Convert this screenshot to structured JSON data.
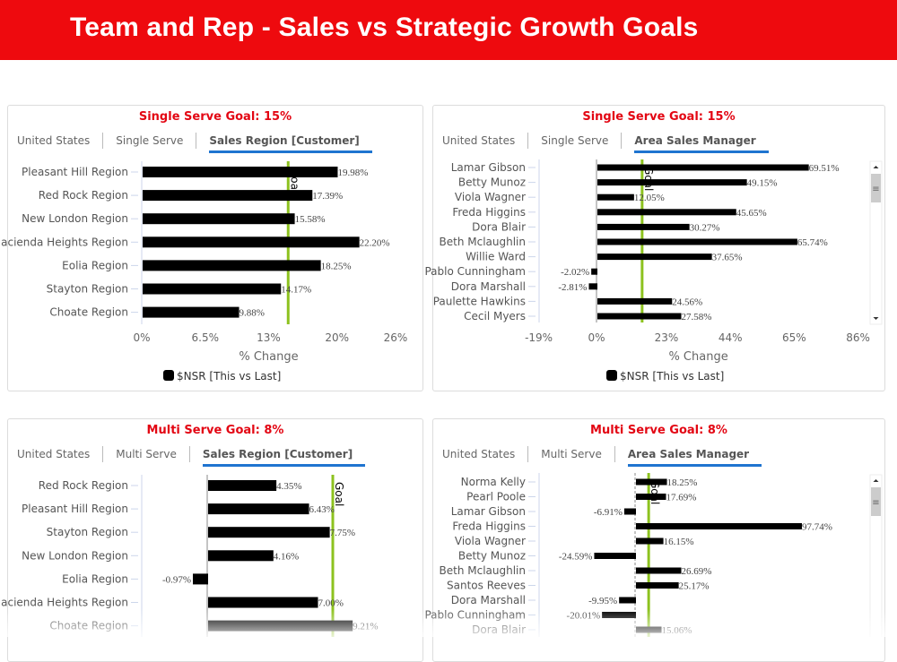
{
  "header": {
    "title": "Team and Rep - Sales vs Strategic Growth Goals"
  },
  "colors": {
    "header_bg": "#ee0a0e",
    "title_red": "#e30613",
    "bar": "#000000",
    "goal_line": "#8dc21f",
    "tab_underline": "#1f74d0"
  },
  "panels": [
    {
      "title": "Single Serve Goal: 15%",
      "tabs": [
        "United States",
        "Single Serve",
        "Sales Region [Customer]"
      ],
      "active_tab": 2,
      "scrollable": false
    },
    {
      "title": "Single Serve Goal: 15%",
      "tabs": [
        "United States",
        "Single Serve",
        "Area Sales Manager"
      ],
      "active_tab": 2,
      "scrollable": true
    },
    {
      "title": "Multi Serve Goal: 8%",
      "tabs": [
        "United States",
        "Multi Serve",
        "Sales Region [Customer]"
      ],
      "active_tab": 2,
      "scrollable": false
    },
    {
      "title": "Multi Serve Goal: 8%",
      "tabs": [
        "United States",
        "Multi Serve",
        "Area Sales Manager"
      ],
      "active_tab": 2,
      "scrollable": true
    }
  ],
  "chart_data": [
    {
      "type": "bar",
      "orientation": "horizontal",
      "categories": [
        "Pleasant Hill Region",
        "Red Rock Region",
        "New London Region",
        "Hacienda Heights Region",
        "Eolia Region",
        "Stayton Region",
        "Choate Region"
      ],
      "values": [
        19.98,
        17.39,
        15.58,
        22.2,
        18.25,
        14.17,
        9.88
      ],
      "labels": [
        "19.98%",
        "17.39%",
        "15.58%",
        "22.20%",
        "18.25%",
        "14.17%",
        "9.88%"
      ],
      "series_name": "$NSR [This vs Last]",
      "goal": 15,
      "goal_label": "Goal",
      "xlabel": "% Change",
      "xticks": [
        0,
        6.5,
        13,
        20,
        26
      ],
      "xtick_labels": [
        "0%",
        "6.5%",
        "13%",
        "20%",
        "26%"
      ],
      "xlim": [
        0,
        26
      ],
      "legend": "bottom"
    },
    {
      "type": "bar",
      "orientation": "horizontal",
      "categories": [
        "Lamar Gibson",
        "Betty Munoz",
        "Viola Wagner",
        "Freda Higgins",
        "Dora Blair",
        "Beth Mclaughlin",
        "Willie Ward",
        "Pablo Cunningham",
        "Dora Marshall",
        "Paulette Hawkins",
        "Cecil Myers"
      ],
      "values": [
        69.51,
        49.15,
        12.05,
        45.65,
        30.27,
        65.74,
        37.65,
        -2.02,
        -2.81,
        24.56,
        27.58
      ],
      "labels": [
        "69.51%",
        "49.15%",
        "12.05%",
        "45.65%",
        "30.27%",
        "65.74%",
        "37.65%",
        "-2.02%",
        "-2.81%",
        "24.56%",
        "27.58%"
      ],
      "series_name": "$NSR [This vs Last]",
      "goal": 15,
      "goal_label": "Goal",
      "xlabel": "% Change",
      "xticks": [
        -19,
        0,
        23,
        44,
        65,
        86
      ],
      "xtick_labels": [
        "-19%",
        "0%",
        "23%",
        "44%",
        "65%",
        "86%"
      ],
      "xlim": [
        -19,
        86
      ],
      "legend": "bottom"
    },
    {
      "type": "bar",
      "orientation": "horizontal",
      "categories": [
        "Red Rock Region",
        "Pleasant Hill Region",
        "Stayton Region",
        "New London Region",
        "Eolia Region",
        "Hacienda Heights Region",
        "Choate Region"
      ],
      "values": [
        4.35,
        6.43,
        7.75,
        4.16,
        -0.97,
        7.0,
        9.21
      ],
      "labels": [
        "4.35%",
        "6.43%",
        "7.75%",
        "4.16%",
        "-0.97%",
        "7.00%",
        "9.21%"
      ],
      "goal": 8,
      "goal_label": "Goal"
    },
    {
      "type": "bar",
      "orientation": "horizontal",
      "categories": [
        "Norma Kelly",
        "Pearl Poole",
        "Lamar Gibson",
        "Freda Higgins",
        "Viola Wagner",
        "Betty Munoz",
        "Beth Mclaughlin",
        "Santos Reeves",
        "Dora Marshall",
        "Pablo Cunningham",
        "Dora Blair"
      ],
      "values": [
        18.25,
        17.69,
        -6.91,
        97.74,
        16.15,
        -24.59,
        26.69,
        25.17,
        -9.95,
        -20.01,
        15.06
      ],
      "labels": [
        "18.25%",
        "17.69%",
        "-6.91%",
        "97.74%",
        "16.15%",
        "-24.59%",
        "26.69%",
        "25.17%",
        "-9.95%",
        "-20.01%",
        "15.06%"
      ],
      "goal": 8,
      "goal_label": "Goal"
    }
  ]
}
